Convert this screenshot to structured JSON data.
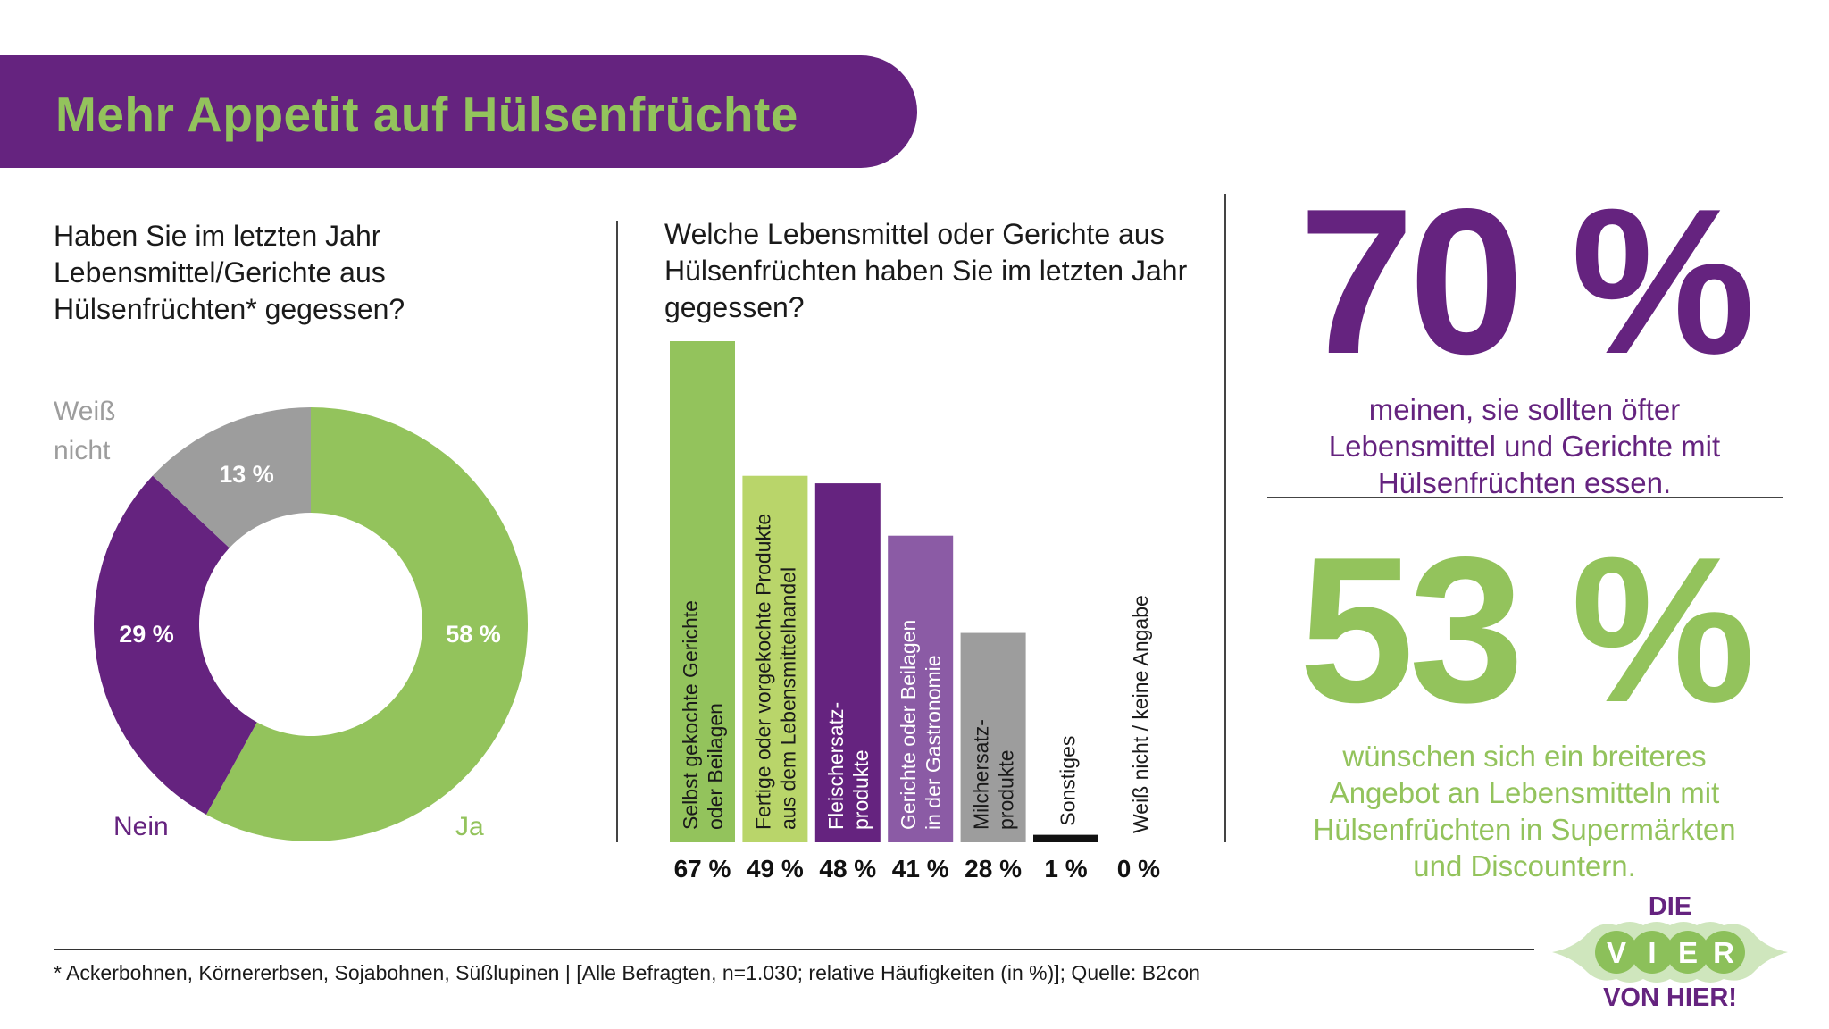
{
  "header": {
    "title": "Mehr Appetit auf Hülsenfrüchte"
  },
  "colors": {
    "purple": "#65237f",
    "green": "#93c35c",
    "light_green": "#b9d56a",
    "light_purple": "#8b5ba5",
    "gray": "#9d9d9d",
    "black": "#111111"
  },
  "chart_data": [
    {
      "type": "pie",
      "title": "Haben Sie im letzten Jahr Lebensmittel/Gerichte aus Hülsenfrüchten* gegessen?",
      "slices": [
        {
          "label": "Ja",
          "value": 58,
          "value_label": "58 %",
          "color": "#93c35c"
        },
        {
          "label": "Nein",
          "value": 29,
          "value_label": "29 %",
          "color": "#65237f"
        },
        {
          "label": "Weiß nicht",
          "value": 13,
          "value_label": "13 %",
          "color": "#9d9d9d"
        }
      ],
      "donut": true
    },
    {
      "type": "bar",
      "title": "Welche Lebensmittel oder Gerichte aus Hülsenfrüchten haben Sie im letzten Jahr gegessen?",
      "categories": [
        [
          "Selbst gekochte Gerichte",
          "oder Beilagen"
        ],
        [
          "Fertige oder vorgekochte Produkte",
          "aus dem Lebensmittelhandel"
        ],
        [
          "Fleischersatz-",
          "produkte"
        ],
        [
          "Gerichte oder Beilagen",
          "in der Gastronomie"
        ],
        [
          "Milchersatz-",
          "produkte"
        ],
        [
          "Sonstiges"
        ],
        [
          "Weiß nicht / keine Angabe"
        ]
      ],
      "values": [
        67,
        49,
        48,
        41,
        28,
        1,
        0
      ],
      "value_labels": [
        "67 %",
        "49 %",
        "48 %",
        "41 %",
        "28 %",
        "1 %",
        "0 %"
      ],
      "colors": [
        "#93c35c",
        "#b9d56a",
        "#65237f",
        "#8b5ba5",
        "#9d9d9d",
        "#111111",
        "#111111"
      ],
      "ylim": [
        0,
        70
      ]
    }
  ],
  "stats": [
    {
      "value": "70 %",
      "text": [
        "meinen, sie sollten öfter",
        "Lebensmittel und Gerichte mit",
        "Hülsenfrüchten essen."
      ],
      "color": "#65237f"
    },
    {
      "value": "53 %",
      "text": [
        "wünschen sich ein breiteres",
        "Angebot an Lebensmitteln mit",
        "Hülsenfrüchten in Supermärkten",
        "und Discountern."
      ],
      "color": "#93c35c"
    }
  ],
  "footnote": "* Ackerbohnen, Körnererbsen, Sojabohnen, Süßlupinen | [Alle Befragten, n=1.030; relative Häufigkeiten (in %)]; Quelle: B2con",
  "logo": {
    "top": "DIE",
    "middle": "VIER",
    "bottom": "VON HIER!"
  }
}
